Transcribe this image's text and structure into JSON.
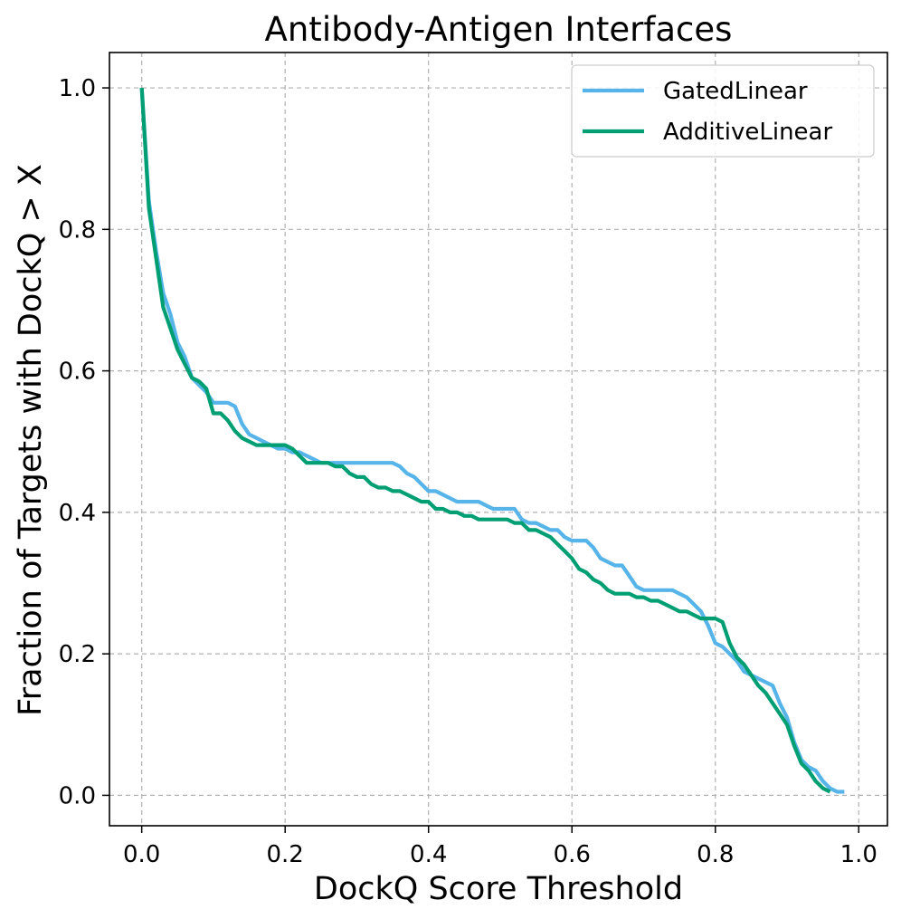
{
  "chart_data": {
    "type": "line",
    "title": "Antibody-Antigen Interfaces",
    "xlabel": "DockQ Score Threshold",
    "ylabel": "Fraction of Targets with DockQ > X",
    "xlim": [
      -0.045,
      1.04
    ],
    "ylim": [
      -0.043,
      1.05
    ],
    "xticks": [
      0.0,
      0.2,
      0.4,
      0.6,
      0.8,
      1.0
    ],
    "xtick_labels": [
      "0.0",
      "0.2",
      "0.4",
      "0.6",
      "0.8",
      "1.0"
    ],
    "yticks": [
      0.0,
      0.2,
      0.4,
      0.6,
      0.8,
      1.0
    ],
    "ytick_labels": [
      "0.0",
      "0.2",
      "0.4",
      "0.6",
      "0.8",
      "1.0"
    ],
    "grid": true,
    "legend_position": "top-right",
    "series": [
      {
        "name": "GatedLinear",
        "color": "#56B4E9",
        "x": [
          0.0,
          0.01,
          0.02,
          0.03,
          0.04,
          0.05,
          0.06,
          0.07,
          0.08,
          0.09,
          0.1,
          0.11,
          0.12,
          0.13,
          0.14,
          0.15,
          0.16,
          0.17,
          0.18,
          0.19,
          0.2,
          0.21,
          0.22,
          0.23,
          0.24,
          0.25,
          0.26,
          0.27,
          0.28,
          0.29,
          0.3,
          0.31,
          0.32,
          0.33,
          0.34,
          0.35,
          0.36,
          0.37,
          0.38,
          0.39,
          0.4,
          0.41,
          0.42,
          0.43,
          0.44,
          0.45,
          0.46,
          0.47,
          0.48,
          0.49,
          0.5,
          0.51,
          0.52,
          0.53,
          0.54,
          0.55,
          0.56,
          0.57,
          0.58,
          0.59,
          0.6,
          0.61,
          0.62,
          0.63,
          0.64,
          0.65,
          0.66,
          0.67,
          0.68,
          0.69,
          0.7,
          0.71,
          0.72,
          0.73,
          0.74,
          0.75,
          0.76,
          0.77,
          0.78,
          0.79,
          0.8,
          0.81,
          0.82,
          0.83,
          0.84,
          0.85,
          0.86,
          0.87,
          0.88,
          0.89,
          0.9,
          0.91,
          0.92,
          0.93,
          0.94,
          0.95,
          0.96,
          0.97,
          0.98
        ],
        "y": [
          1.0,
          0.84,
          0.77,
          0.71,
          0.68,
          0.64,
          0.62,
          0.59,
          0.58,
          0.57,
          0.555,
          0.555,
          0.555,
          0.55,
          0.525,
          0.51,
          0.505,
          0.5,
          0.495,
          0.49,
          0.49,
          0.485,
          0.485,
          0.48,
          0.475,
          0.47,
          0.47,
          0.47,
          0.47,
          0.47,
          0.47,
          0.47,
          0.47,
          0.47,
          0.47,
          0.47,
          0.465,
          0.455,
          0.45,
          0.44,
          0.43,
          0.43,
          0.425,
          0.42,
          0.415,
          0.415,
          0.415,
          0.415,
          0.41,
          0.405,
          0.405,
          0.405,
          0.405,
          0.39,
          0.385,
          0.385,
          0.38,
          0.375,
          0.375,
          0.365,
          0.36,
          0.36,
          0.36,
          0.35,
          0.335,
          0.33,
          0.325,
          0.325,
          0.31,
          0.295,
          0.29,
          0.29,
          0.29,
          0.29,
          0.29,
          0.285,
          0.28,
          0.27,
          0.26,
          0.24,
          0.215,
          0.21,
          0.2,
          0.19,
          0.175,
          0.17,
          0.165,
          0.16,
          0.155,
          0.13,
          0.11,
          0.075,
          0.05,
          0.04,
          0.035,
          0.02,
          0.01,
          0.005,
          0.005
        ]
      },
      {
        "name": "AdditiveLinear",
        "color": "#009E73",
        "x": [
          0.0,
          0.01,
          0.02,
          0.03,
          0.04,
          0.05,
          0.06,
          0.07,
          0.08,
          0.09,
          0.1,
          0.11,
          0.12,
          0.13,
          0.14,
          0.15,
          0.16,
          0.17,
          0.18,
          0.19,
          0.2,
          0.21,
          0.22,
          0.23,
          0.24,
          0.25,
          0.26,
          0.27,
          0.28,
          0.29,
          0.3,
          0.31,
          0.32,
          0.33,
          0.34,
          0.35,
          0.36,
          0.37,
          0.38,
          0.39,
          0.4,
          0.41,
          0.42,
          0.43,
          0.44,
          0.45,
          0.46,
          0.47,
          0.48,
          0.49,
          0.5,
          0.51,
          0.52,
          0.53,
          0.54,
          0.55,
          0.56,
          0.57,
          0.58,
          0.59,
          0.6,
          0.61,
          0.62,
          0.63,
          0.64,
          0.65,
          0.66,
          0.67,
          0.68,
          0.69,
          0.7,
          0.71,
          0.72,
          0.73,
          0.74,
          0.75,
          0.76,
          0.77,
          0.78,
          0.79,
          0.8,
          0.81,
          0.82,
          0.83,
          0.84,
          0.85,
          0.86,
          0.87,
          0.88,
          0.89,
          0.9,
          0.91,
          0.92,
          0.93,
          0.94,
          0.95,
          0.96
        ],
        "y": [
          1.0,
          0.83,
          0.76,
          0.69,
          0.66,
          0.63,
          0.61,
          0.59,
          0.585,
          0.575,
          0.54,
          0.54,
          0.53,
          0.515,
          0.505,
          0.5,
          0.495,
          0.495,
          0.495,
          0.495,
          0.495,
          0.49,
          0.48,
          0.47,
          0.47,
          0.47,
          0.47,
          0.465,
          0.465,
          0.455,
          0.45,
          0.45,
          0.44,
          0.435,
          0.435,
          0.43,
          0.43,
          0.425,
          0.42,
          0.415,
          0.415,
          0.405,
          0.405,
          0.4,
          0.4,
          0.395,
          0.395,
          0.39,
          0.39,
          0.39,
          0.39,
          0.39,
          0.385,
          0.385,
          0.375,
          0.375,
          0.37,
          0.365,
          0.355,
          0.345,
          0.335,
          0.32,
          0.315,
          0.305,
          0.3,
          0.29,
          0.285,
          0.285,
          0.285,
          0.28,
          0.28,
          0.275,
          0.275,
          0.27,
          0.265,
          0.26,
          0.26,
          0.255,
          0.25,
          0.25,
          0.25,
          0.245,
          0.215,
          0.195,
          0.185,
          0.17,
          0.155,
          0.145,
          0.13,
          0.115,
          0.1,
          0.07,
          0.045,
          0.035,
          0.02,
          0.01,
          0.005
        ]
      }
    ]
  }
}
